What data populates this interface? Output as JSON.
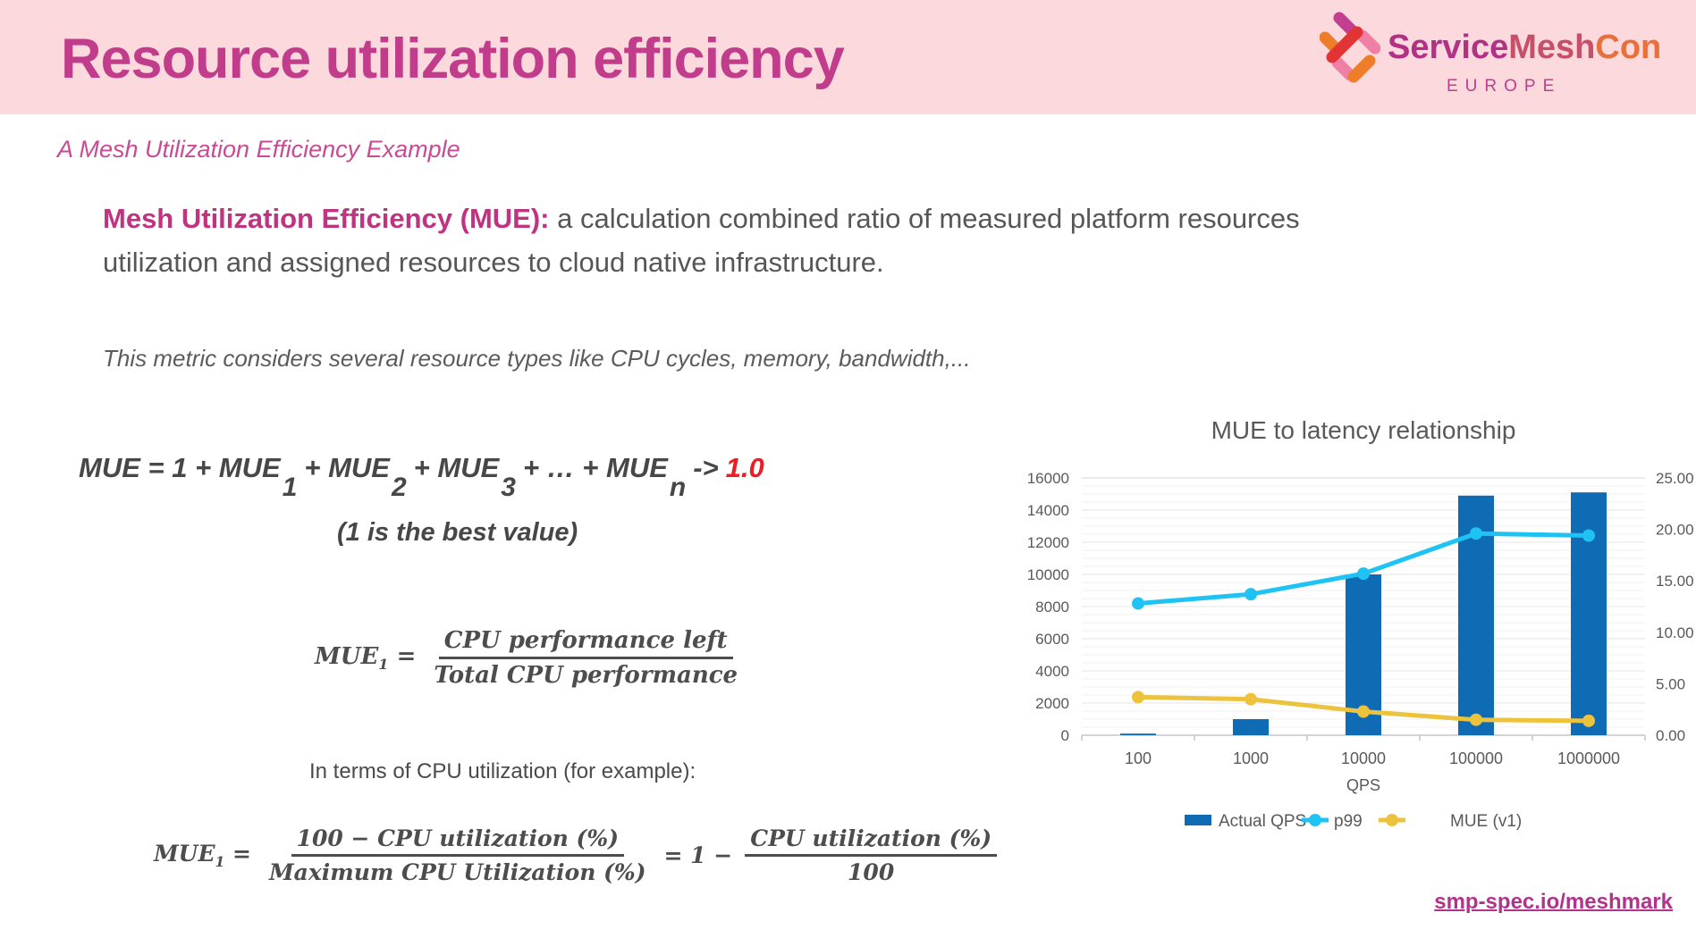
{
  "header": {
    "title": "Resource utilization efficiency",
    "logo": {
      "part1": "Service",
      "part2": "Mesh",
      "part3": "Con",
      "region": "EUROPE"
    }
  },
  "subtitle": "A Mesh Utilization Efficiency Example",
  "definition": {
    "term": "Mesh Utilization Efficiency (MUE):",
    "rest_line1": " a calculation combined ratio of measured platform resources",
    "rest_line2": "utilization and assigned resources to cloud native infrastructure."
  },
  "note": "This metric considers several resource types like CPU cycles, memory, bandwidth,...",
  "formula_sum": {
    "lhs": "MUE",
    "eq": " = 1 + MUE",
    "sub1": "1",
    "t2": "+ MUE",
    "sub2": "2",
    "t3": "+ MUE",
    "sub3": "3",
    "t4": "+ … + MUE",
    "subn": "n",
    "arrow": "->",
    "limit": "1.0",
    "caption": "(1 is the best value)"
  },
  "formula_cpu": {
    "lhs": "MUE",
    "lhs_sub": "1",
    "eq": "=",
    "numerator": "CPU performance left",
    "denominator": "Total CPU performance"
  },
  "note2": "In terms of CPU utilization (for example):",
  "formula_util": {
    "lhs": "MUE",
    "lhs_sub": "1",
    "eq": "=",
    "num1": "100 − CPU utilization (%)",
    "den1": "Maximum CPU Utilization (%)",
    "mid_eq": "= 1 −",
    "num2": "CPU utilization (%)",
    "den2": "100"
  },
  "footer_link": "smp-spec.io/meshmark",
  "colors": {
    "header_bg": "#fbd9dd",
    "title": "#c23c8c",
    "accent_magenta": "#bf3381",
    "body_gray": "#56565a",
    "formula_gray": "#474749",
    "limit_red": "#ee1c23",
    "bar_blue": "#0f6bb4",
    "line_cyan": "#1fc3f3",
    "line_yellow": "#edc23c",
    "link": "#b2338c"
  },
  "chart_data": {
    "type": "combo",
    "title": "MUE to latency relationship",
    "xlabel": "QPS",
    "categories": [
      "100",
      "1000",
      "10000",
      "100000",
      "1000000"
    ],
    "series": [
      {
        "name": "Actual QPS",
        "type": "bar",
        "axis": "left",
        "color": "#0f6bb4",
        "values": [
          100,
          1000,
          10000,
          14900,
          15100
        ]
      },
      {
        "name": "p99",
        "type": "line",
        "axis": "right",
        "color": "#1fc3f3",
        "values": [
          12.8,
          13.7,
          15.7,
          19.6,
          19.4
        ]
      },
      {
        "name": "MUE (v1)",
        "type": "line",
        "axis": "right",
        "color": "#edc23c",
        "values": [
          3.7,
          3.5,
          2.3,
          1.5,
          1.4
        ]
      }
    ],
    "left_axis": {
      "min": 0,
      "max": 16000,
      "step": 2000,
      "minor_step": 500
    },
    "right_axis": {
      "min": 0,
      "max": 25,
      "step": 5
    },
    "grid": true,
    "legend_position": "bottom"
  }
}
